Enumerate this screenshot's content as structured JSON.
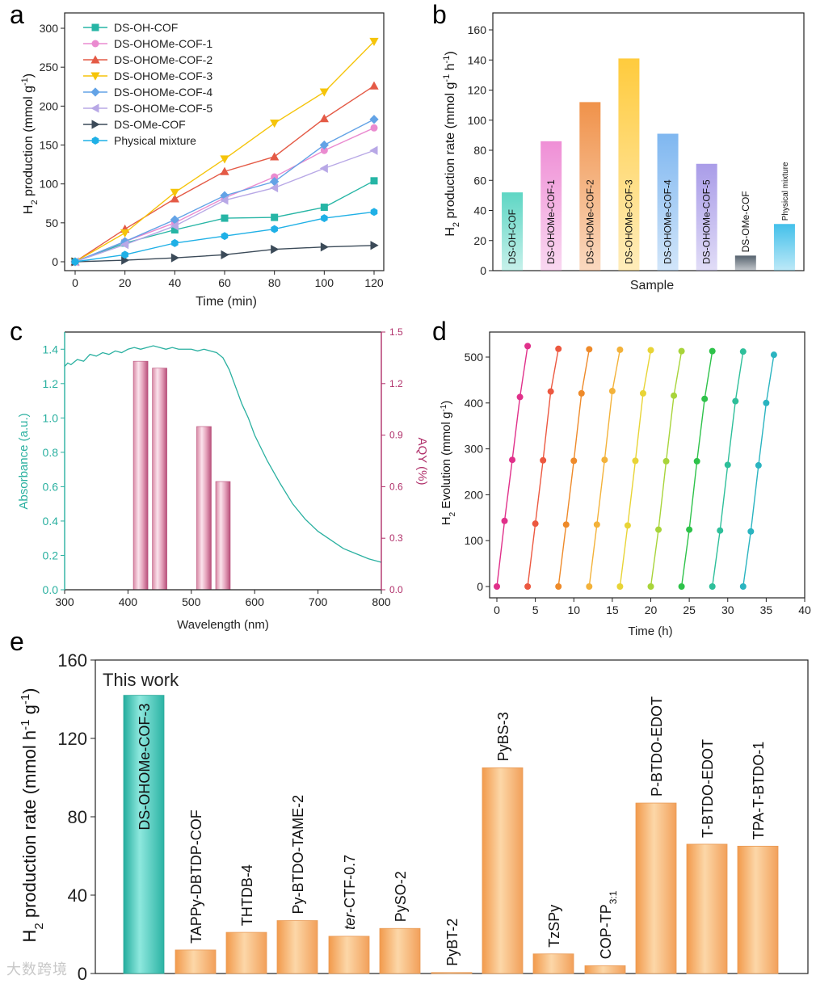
{
  "panel_labels": [
    "a",
    "b",
    "c",
    "d",
    "e"
  ],
  "watermark": "大数跨境",
  "colors": {
    "teal": "#26b5a5",
    "pink": "#ea8bd0",
    "red": "#e45a46",
    "yellow": "#f5c40a",
    "blue": "#63a3e6",
    "violet": "#b8a8e6",
    "slate": "#3b4a58",
    "cyan": "#1fb0e6",
    "abs_axis": "#2ab0a0",
    "aqy_axis": "#b0306a",
    "orange_bar": "#f4a65a"
  },
  "chart_data": [
    {
      "id": "a",
      "type": "line",
      "xlabel": "Time (min)",
      "ylabel": "H2 production (mmol g-1)",
      "ylabel_parts": [
        "H",
        "2",
        " production (mmol g",
        "-1",
        ")"
      ],
      "xlim": [
        0,
        120
      ],
      "ylim": [
        0,
        300
      ],
      "xticks": [
        0,
        20,
        40,
        60,
        80,
        100,
        120
      ],
      "yticks": [
        0,
        50,
        100,
        150,
        200,
        250,
        300
      ],
      "legend": "top-left",
      "x": [
        0,
        20,
        40,
        60,
        80,
        100,
        120
      ],
      "series": [
        {
          "name": "DS-OH-COF",
          "marker": "square",
          "color": "#26b5a5",
          "values": [
            0,
            24,
            41,
            56,
            57,
            70,
            104
          ]
        },
        {
          "name": "DS-OHOMe-COF-1",
          "marker": "circle",
          "color": "#ea8bd0",
          "values": [
            0,
            26,
            50,
            82,
            109,
            143,
            172
          ]
        },
        {
          "name": "DS-OHOMe-COF-2",
          "marker": "triangle-up",
          "color": "#e45a46",
          "values": [
            0,
            42,
            81,
            116,
            135,
            184,
            226
          ]
        },
        {
          "name": "DS-OHOMe-COF-3",
          "marker": "triangle-down",
          "color": "#f5c40a",
          "values": [
            0,
            37,
            89,
            132,
            178,
            218,
            283
          ]
        },
        {
          "name": "DS-OHOMe-COF-4",
          "marker": "diamond",
          "color": "#63a3e6",
          "values": [
            0,
            26,
            54,
            85,
            103,
            150,
            183
          ]
        },
        {
          "name": "DS-OHOMe-COF-5",
          "marker": "triangle-left",
          "color": "#b8a8e6",
          "values": [
            0,
            22,
            46,
            79,
            95,
            120,
            143
          ]
        },
        {
          "name": "DS-OMe-COF",
          "marker": "triangle-right",
          "color": "#3b4a58",
          "values": [
            0,
            2,
            5,
            9,
            16,
            19,
            21
          ]
        },
        {
          "name": "Physical mixture",
          "marker": "hexagon",
          "color": "#1fb0e6",
          "values": [
            0,
            9,
            24,
            33,
            42,
            56,
            64
          ]
        }
      ]
    },
    {
      "id": "b",
      "type": "bar",
      "xlabel": "Sample",
      "ylabel": "H2 production rate (mmol g-1 h-1)",
      "ylabel_parts": [
        "H",
        "2",
        " production rate (mmol g",
        "-1",
        " h",
        "-1",
        ")"
      ],
      "ylim": [
        0,
        160
      ],
      "yticks": [
        0,
        20,
        40,
        60,
        80,
        100,
        120,
        140,
        160
      ],
      "categories": [
        "DS-OH-COF",
        "DS-OHOMe-COF-1",
        "DS-OHOMe-COF-2",
        "DS-OHOMe-COF-3",
        "DS-OHOMe-COF-4",
        "DS-OHOMe-COF-5",
        "DS-OMe-COF",
        "Physical mixture"
      ],
      "values": [
        52,
        86,
        112,
        141,
        91,
        71,
        10,
        31
      ],
      "colors": [
        "#5ed6c4",
        "#ef8fd6",
        "#f0924a",
        "#ffcb3d",
        "#7fb7f0",
        "#a99ce8",
        "#56626e",
        "#43c0ea"
      ]
    },
    {
      "id": "c",
      "type": "line+bar",
      "xlabel": "Wavelength (nm)",
      "ylabel": "Absorbance (a.u.)",
      "y2label": "AQY (%)",
      "xlim": [
        300,
        800
      ],
      "ylim": [
        0,
        1.5
      ],
      "y2lim": [
        0,
        1.5
      ],
      "xticks": [
        300,
        400,
        500,
        600,
        700,
        800
      ],
      "yticks": [
        "0.0",
        "0.2",
        "0.4",
        "0.6",
        "0.8",
        "1.0",
        "1.2",
        "1.4"
      ],
      "y2ticks": [
        "0.0",
        "0.3",
        "0.6",
        "0.9",
        "1.2",
        "1.5"
      ],
      "absorbance": {
        "x": [
          300,
          305,
          310,
          320,
          330,
          340,
          350,
          360,
          370,
          380,
          390,
          400,
          410,
          420,
          430,
          440,
          450,
          460,
          470,
          480,
          490,
          500,
          510,
          520,
          530,
          540,
          550,
          560,
          570,
          580,
          590,
          600,
          620,
          640,
          660,
          680,
          700,
          720,
          740,
          760,
          780,
          790,
          800
        ],
        "y": [
          1.3,
          1.32,
          1.31,
          1.34,
          1.33,
          1.37,
          1.36,
          1.38,
          1.37,
          1.39,
          1.38,
          1.4,
          1.41,
          1.4,
          1.41,
          1.42,
          1.41,
          1.4,
          1.41,
          1.4,
          1.4,
          1.4,
          1.39,
          1.4,
          1.39,
          1.38,
          1.35,
          1.28,
          1.18,
          1.08,
          1.0,
          0.9,
          0.75,
          0.62,
          0.5,
          0.41,
          0.34,
          0.29,
          0.24,
          0.21,
          0.18,
          0.17,
          0.16
        ]
      },
      "aqy": {
        "wavelengths": [
          420,
          450,
          520,
          550
        ],
        "values": [
          1.33,
          1.29,
          0.95,
          0.63
        ]
      }
    },
    {
      "id": "d",
      "type": "line",
      "xlabel": "Time (h)",
      "ylabel": "H2 Evolution (mmol g-1)",
      "ylabel_parts": [
        "H",
        "2",
        " Evolution (mmol g",
        "-1",
        ")"
      ],
      "xlim": [
        -1,
        40
      ],
      "ylim": [
        -15,
        540
      ],
      "xticks": [
        0,
        5,
        10,
        15,
        20,
        25,
        30,
        35,
        40
      ],
      "yticks": [
        0,
        100,
        200,
        300,
        400,
        500
      ],
      "cycles": [
        {
          "x": [
            0,
            1,
            2,
            3,
            4
          ],
          "y": [
            0,
            143,
            276,
            413,
            524
          ],
          "color": "#e0308a"
        },
        {
          "x": [
            4,
            5,
            6,
            7,
            8
          ],
          "y": [
            0,
            137,
            275,
            425,
            518
          ],
          "color": "#ec5840"
        },
        {
          "x": [
            8,
            9,
            10,
            11,
            12
          ],
          "y": [
            0,
            135,
            274,
            421,
            517
          ],
          "color": "#ee8a2a"
        },
        {
          "x": [
            12,
            13,
            14,
            15,
            16
          ],
          "y": [
            0,
            135,
            276,
            426,
            516
          ],
          "color": "#f3b23a"
        },
        {
          "x": [
            16,
            17,
            18,
            19,
            20
          ],
          "y": [
            0,
            133,
            274,
            421,
            515
          ],
          "color": "#e8d436"
        },
        {
          "x": [
            20,
            21,
            22,
            23,
            24
          ],
          "y": [
            0,
            124,
            273,
            416,
            513
          ],
          "color": "#a8d43a"
        },
        {
          "x": [
            24,
            25,
            26,
            27,
            28
          ],
          "y": [
            0,
            124,
            273,
            409,
            513
          ],
          "color": "#2ec24a"
        },
        {
          "x": [
            28,
            29,
            30,
            31,
            32
          ],
          "y": [
            0,
            122,
            265,
            404,
            512
          ],
          "color": "#2ebf9a"
        },
        {
          "x": [
            32,
            33,
            34,
            35,
            36
          ],
          "y": [
            0,
            120,
            264,
            400,
            505
          ],
          "color": "#2ab4c0"
        }
      ]
    },
    {
      "id": "e",
      "type": "bar",
      "ylabel": "H2 production rate (mmol h-1 g-1)",
      "ylabel_parts": [
        "H",
        "2",
        " production rate (mmol h",
        "-1",
        " g",
        "-1",
        ")"
      ],
      "ylim": [
        0,
        160
      ],
      "yticks": [
        0,
        40,
        80,
        120,
        160
      ],
      "annotation": "This work",
      "categories": [
        "DS-OHOMe-COF-3",
        "TAPPy-DBTDP-COF",
        "THTDB-4",
        "Py-BTDO-TAME-2",
        "ter-CTF-0.7",
        "PySO-2",
        "PyBT-2",
        "PyBS-3",
        "TzSPy",
        "COP-TP3:1",
        "P-BTDO-EDOT",
        "T-BTDO-EDOT",
        "TPA-T-BTDO-1"
      ],
      "label_parts": [
        {
          "main": "DS-OHOMe-COF-3"
        },
        {
          "main": "TAPPy-DBTDP-COF"
        },
        {
          "main": "THTDB-4"
        },
        {
          "main": "Py-BTDO-TAME-2"
        },
        {
          "ital": "ter",
          "main": "-CTF-0.7"
        },
        {
          "main": "PySO-2"
        },
        {
          "main": "PyBT-2"
        },
        {
          "main": "PyBS-3"
        },
        {
          "main": "TzSPy"
        },
        {
          "main": "COP-TP",
          "sub": "3:1"
        },
        {
          "main": "P-BTDO-EDOT"
        },
        {
          "main": "T-BTDO-EDOT"
        },
        {
          "main": "TPA-T-BTDO-1"
        }
      ],
      "values": [
        142,
        12,
        21,
        27,
        19,
        23,
        0.5,
        105,
        10,
        4,
        87,
        66,
        65
      ]
    }
  ]
}
